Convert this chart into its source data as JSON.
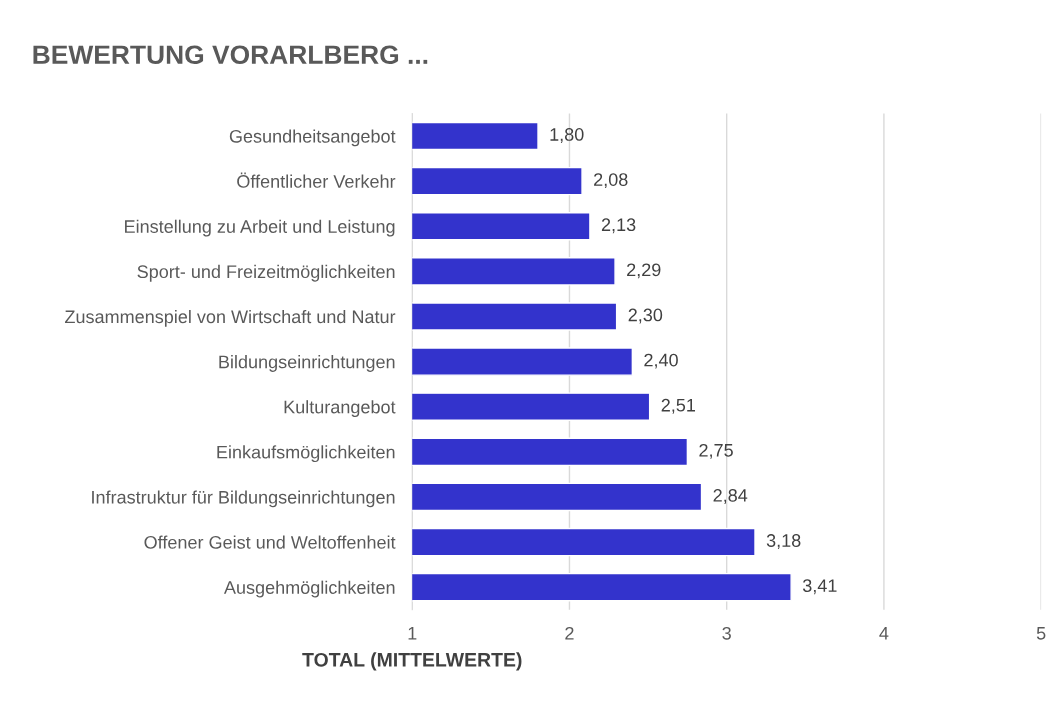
{
  "chart_data": {
    "type": "bar",
    "orientation": "horizontal",
    "title": "BEWERTUNG VORARLBERG ...",
    "xlabel": "TOTAL (MITTELWERTE)",
    "categories": [
      "Gesundheitsangebot",
      "Öffentlicher Verkehr",
      "Einstellung zu Arbeit und Leistung",
      "Sport- und Freizeitmöglichkeiten",
      "Zusammenspiel von Wirtschaft und Natur",
      "Bildungseinrichtungen",
      "Kulturangebot",
      "Einkaufsmöglichkeiten",
      "Infrastruktur für Bildungseinrichtungen",
      "Offener Geist und Weltoffenheit",
      "Ausgehmöglichkeiten"
    ],
    "values": [
      1.8,
      2.08,
      2.13,
      2.29,
      2.3,
      2.4,
      2.51,
      2.75,
      2.84,
      3.18,
      3.41
    ],
    "value_labels": [
      "1,80",
      "2,08",
      "2,13",
      "2,29",
      "2,30",
      "2,40",
      "2,51",
      "2,75",
      "2,84",
      "3,18",
      "3,41"
    ],
    "color": "#3333cc",
    "xlim": [
      1,
      5
    ],
    "xticks": [
      1,
      2,
      3,
      4,
      5
    ],
    "grid": "x"
  }
}
